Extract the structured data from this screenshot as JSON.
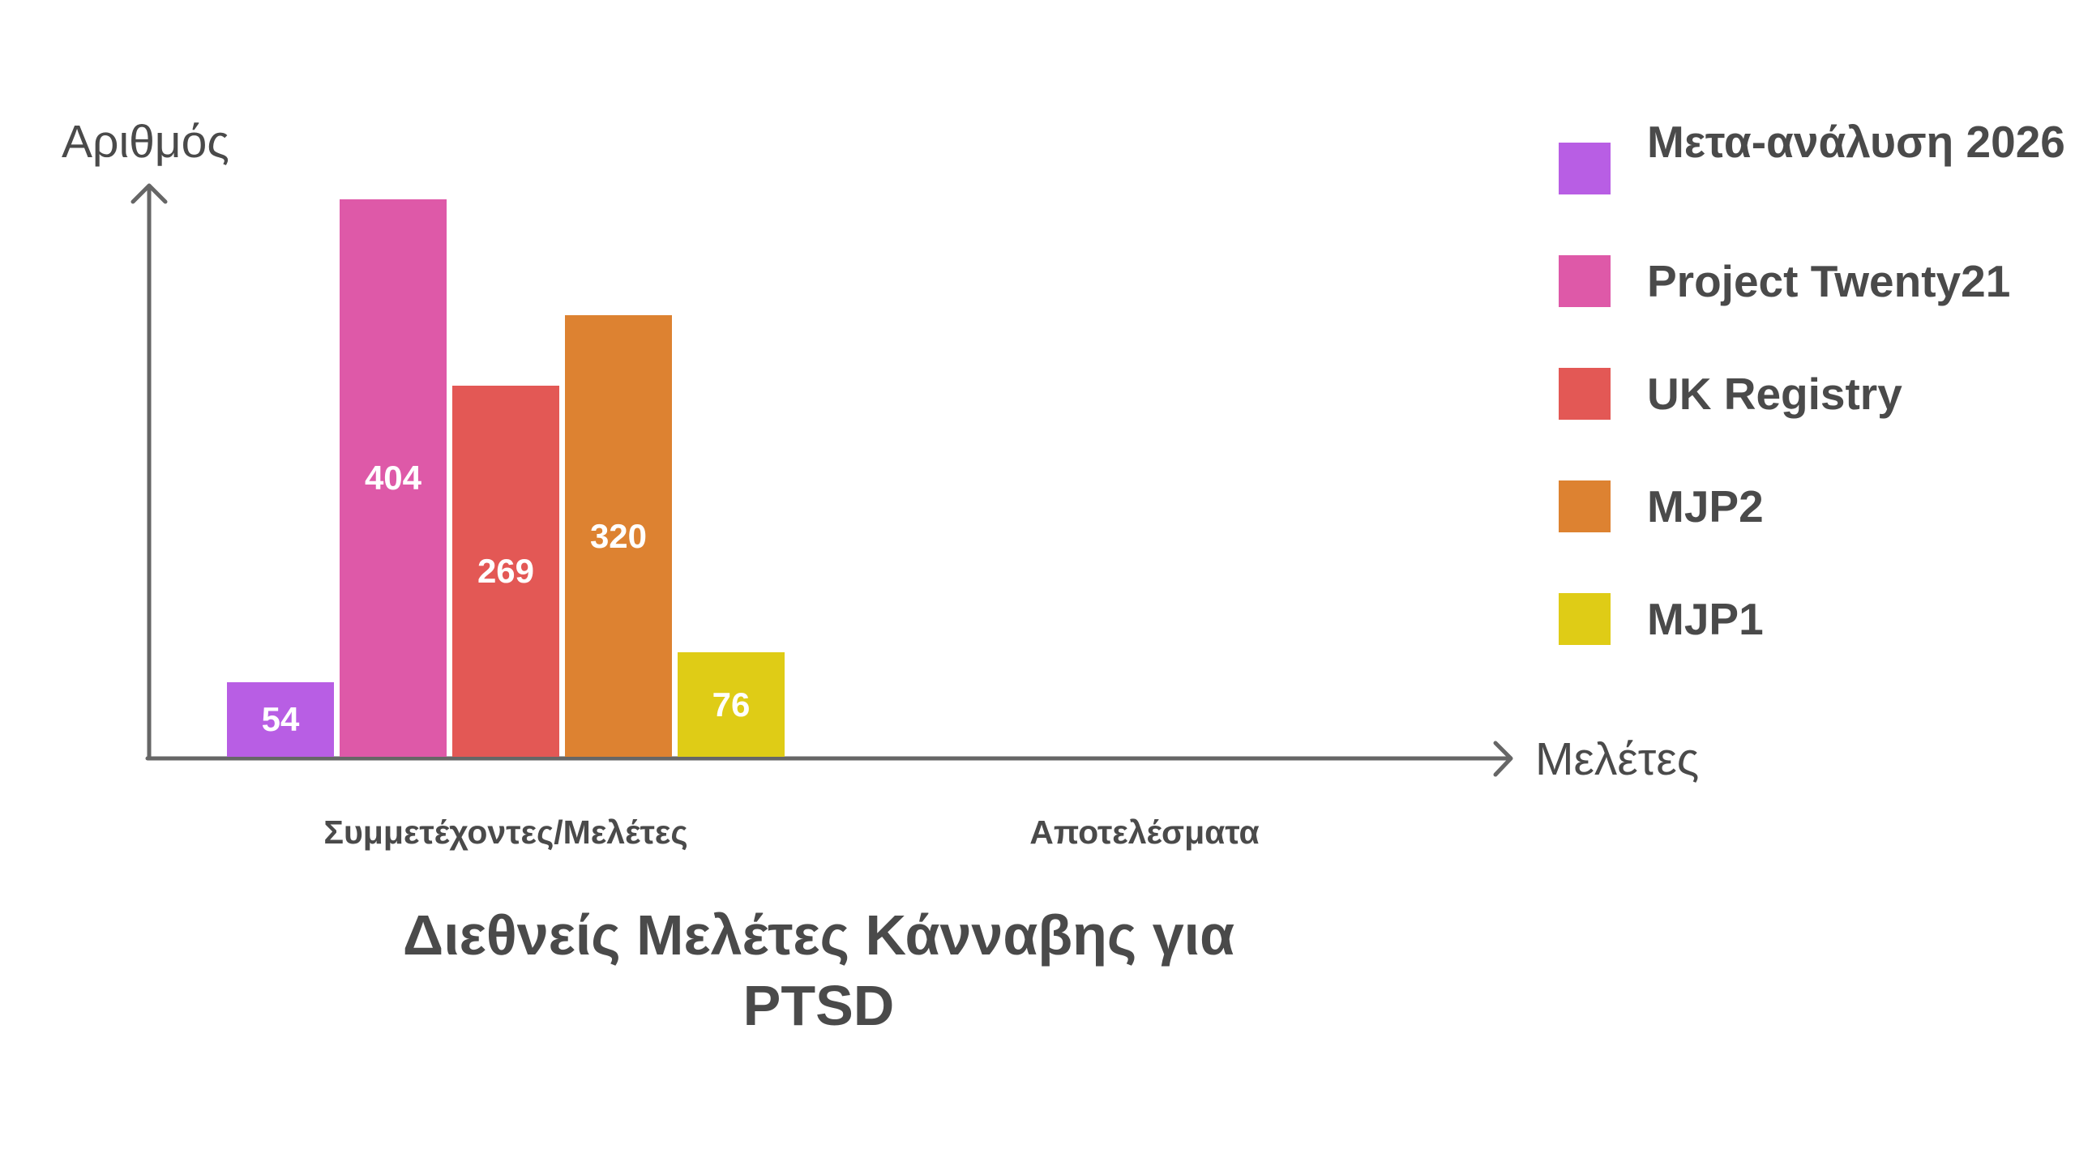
{
  "chart_data": {
    "type": "bar",
    "title": "Διεθνείς Μελέτες Κάνναβης για PTSD",
    "title_lines": [
      "Διεθνείς Μελέτες Κάνναβης για",
      "PTSD"
    ],
    "xlabel": "Μελέτες",
    "ylabel": "Αριθμός",
    "categories": [
      "Συμμετέχοντες/Μελέτες",
      "Αποτελέσματα"
    ],
    "series": [
      {
        "name": "Μετα-ανάλυση 2026",
        "color": "#b85ee4",
        "values": [
          54,
          null
        ]
      },
      {
        "name": "Project Twenty21",
        "color": "#de59a8",
        "values": [
          404,
          null
        ]
      },
      {
        "name": "UK Registry",
        "color": "#e35855",
        "values": [
          269,
          null
        ]
      },
      {
        "name": "MJP2",
        "color": "#dd8231",
        "values": [
          320,
          null
        ]
      },
      {
        "name": "MJP1",
        "color": "#dfcc16",
        "values": [
          76,
          null
        ]
      }
    ],
    "data_labels": [
      "54",
      "404",
      "269",
      "320",
      "76"
    ],
    "grid": false,
    "legend_position": "right",
    "ylim": [
      0,
      404
    ]
  },
  "axes": {
    "y_label": "Αριθμός",
    "x_label": "Μελέτες",
    "color": "#666666"
  },
  "categories": {
    "first": "Συμμετέχοντες/Μελέτες",
    "second": "Αποτελέσματα"
  },
  "title": {
    "line1": "Διεθνείς Μελέτες Κάνναβης για",
    "line2": "PTSD"
  },
  "legend": {
    "items": [
      {
        "label": "Μετα-ανάλυση 2026",
        "color": "#b85ee4"
      },
      {
        "label": "Project Twenty21",
        "color": "#de59a8"
      },
      {
        "label": "UK Registry",
        "color": "#e35855"
      },
      {
        "label": "MJP2",
        "color": "#dd8231"
      },
      {
        "label": "MJP1",
        "color": "#dfcc16"
      }
    ]
  }
}
